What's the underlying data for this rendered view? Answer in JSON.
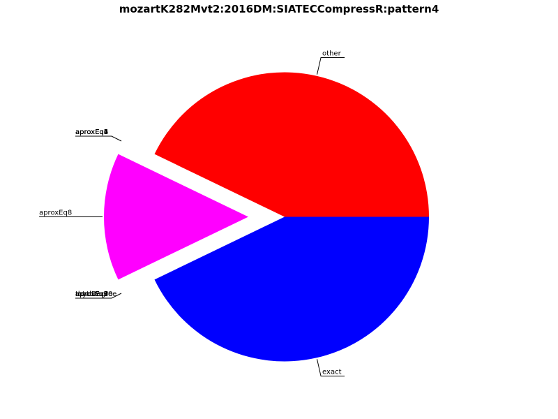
{
  "chart_data": {
    "type": "pie",
    "title": "mozartK282Mvt2:2016DM:SIATECCompressR:pattern4",
    "slices": [
      {
        "label": "other",
        "value": 0.4286,
        "color": "#ff0000",
        "exploded": false
      },
      {
        "label": "aproxEq4",
        "value": 0.0,
        "color": "#00bfbf",
        "exploded": true
      },
      {
        "label": "aproxEq8",
        "value": 0.1429,
        "color": "#ff00ff",
        "exploded": true
      },
      {
        "label": "aproxEq2",
        "value": 0.0,
        "color": "#bfbf00",
        "exploded": true
      },
      {
        "label": "exact",
        "value": 0.4286,
        "color": "#0000ff",
        "exploded": false
      }
    ],
    "stacked_labels_upper": [
      "aproxEq4",
      "aproxEq1",
      "aproxEq2",
      "aproxEq6"
    ],
    "stacked_labels_lower": [
      "totalDegree",
      "rhythm",
      "aproxEq2",
      "aproxEq3",
      "aproxEq5",
      "aproxEq7",
      "aproxEq9",
      "aproxEq10"
    ],
    "start_angle_deg": 0,
    "direction": "counterclockwise",
    "legend": "none"
  }
}
